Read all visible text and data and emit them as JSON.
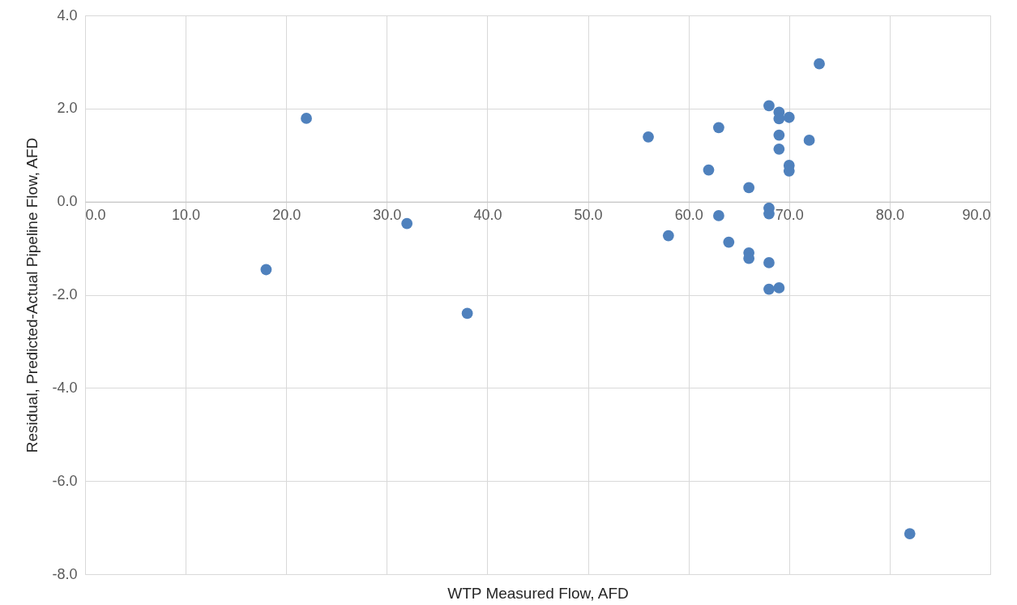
{
  "chart_data": {
    "type": "scatter",
    "xlabel": "WTP Measured Flow, AFD",
    "ylabel": "Residual, Predicted-Actual Pipeline Flow, AFD",
    "x": [
      18,
      22,
      32,
      38,
      56,
      58,
      62,
      63,
      63,
      64,
      66,
      66,
      66,
      68,
      68,
      68,
      68,
      68,
      69,
      69,
      69,
      69,
      69,
      70,
      70,
      70,
      72,
      73,
      82
    ],
    "series": [
      {
        "color": "#4f81bd",
        "values": [
          -1.46,
          1.79,
          -0.47,
          -2.4,
          1.39,
          -0.73,
          0.68,
          1.59,
          -0.3,
          -0.87,
          0.3,
          -1.1,
          -1.22,
          2.06,
          -0.14,
          -0.26,
          -1.31,
          -1.88,
          1.92,
          1.78,
          1.43,
          1.13,
          -1.85,
          1.81,
          0.78,
          0.66,
          1.32,
          2.96,
          -7.13
        ]
      }
    ],
    "xlim": [
      0,
      90
    ],
    "ylim": [
      -8,
      4
    ],
    "xticks": [
      {
        "value": 0,
        "label": "0.0"
      },
      {
        "value": 10,
        "label": "10.0"
      },
      {
        "value": 20,
        "label": "20.0"
      },
      {
        "value": 30,
        "label": "30.0"
      },
      {
        "value": 40,
        "label": "40.0"
      },
      {
        "value": 50,
        "label": "50.0"
      },
      {
        "value": 60,
        "label": "60.0"
      },
      {
        "value": 70,
        "label": "70.0"
      },
      {
        "value": 80,
        "label": "80.0"
      },
      {
        "value": 90,
        "label": "90.0"
      }
    ],
    "yticks": [
      {
        "value": -8,
        "label": "-8.0"
      },
      {
        "value": -6,
        "label": "-6.0"
      },
      {
        "value": -4,
        "label": "-4.0"
      },
      {
        "value": -2,
        "label": "-2.0"
      },
      {
        "value": 0,
        "label": "0.0"
      },
      {
        "value": 2,
        "label": "2.0"
      },
      {
        "value": 4,
        "label": "4.0"
      }
    ],
    "grid": true,
    "marker": "circle",
    "legend": false
  }
}
